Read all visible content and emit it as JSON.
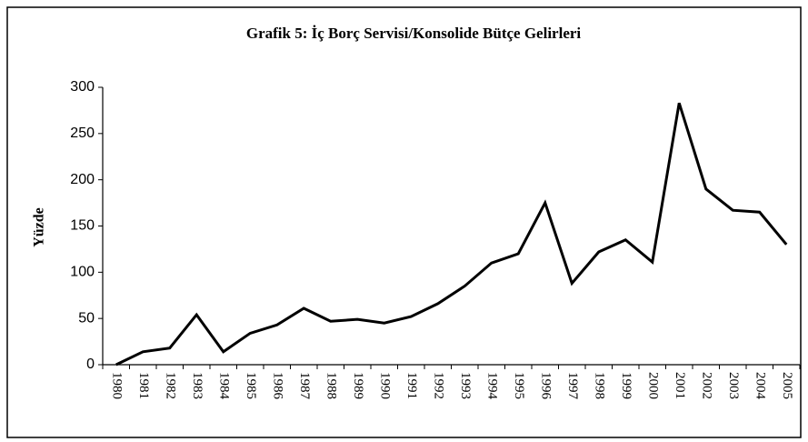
{
  "chart_data": {
    "type": "line",
    "title": "Grafik 5: İç Borç Servisi/Konsolide Bütçe Gelirleri",
    "ylabel": "Yüzde",
    "categories": [
      "1980",
      "1981",
      "1982",
      "1983",
      "1984",
      "1985",
      "1986",
      "1987",
      "1988",
      "1989",
      "1990",
      "1991",
      "1992",
      "1993",
      "1994",
      "1995",
      "1996",
      "1997",
      "1998",
      "1999",
      "2000",
      "2001",
      "2002",
      "2003",
      "2004",
      "2005"
    ],
    "series": [
      {
        "name": "İç Borç Servisi/Konsolide Bütçe Gelirleri",
        "color": "#000000",
        "values": [
          0,
          14,
          18,
          54,
          14,
          34,
          43,
          61,
          47,
          49,
          45,
          52,
          66,
          85,
          110,
          120,
          175,
          88,
          122,
          135,
          111,
          283,
          190,
          167,
          165,
          130
        ]
      }
    ],
    "ylim": [
      0,
      300
    ],
    "yticks": [
      0,
      50,
      100,
      150,
      200,
      250,
      300
    ],
    "grid": false
  }
}
